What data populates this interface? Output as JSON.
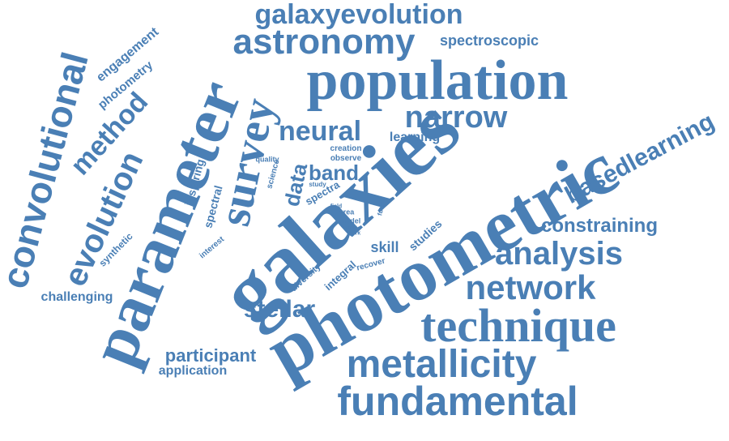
{
  "color": "#4a7fb5",
  "background": "#ffffff",
  "words": {
    "galaxies": "galaxies",
    "photometric": "photometric",
    "parameter": "parameter",
    "population": "population",
    "technique": "technique",
    "fundamental": "fundamental",
    "metallicity": "metallicity",
    "convolutional": "convolutional",
    "survey": "survey",
    "astronomy": "astronomy",
    "galaxyevolution": "galaxyevolution",
    "evolution": "evolution",
    "network": "network",
    "analysis": "analysis",
    "narrow": "narrow",
    "neural": "neural",
    "method": "method",
    "basedlearning": "basedlearning",
    "constraining": "constraining",
    "stellar": "stellar",
    "participant": "participant",
    "application": "application",
    "band": "band",
    "data": "data",
    "spectroscopic": "spectroscopic",
    "engagement": "engagement",
    "photometry": "photometry",
    "challenging": "challenging",
    "learning": "learning",
    "skill": "skill",
    "studies": "studies",
    "spectral": "spectral",
    "inspiring": "inspiring",
    "synthetic": "synthetic",
    "integral": "integral",
    "spectra": "spectra",
    "science": "science",
    "diversity": "diversity",
    "interest": "interest",
    "creation": "creation",
    "observe": "observe",
    "quality": "quality",
    "recover": "recover",
    "study": "study",
    "area": "area",
    "model": "model",
    "future": "future",
    "field": "field",
    "cnns": "cnns",
    "work": "work"
  }
}
